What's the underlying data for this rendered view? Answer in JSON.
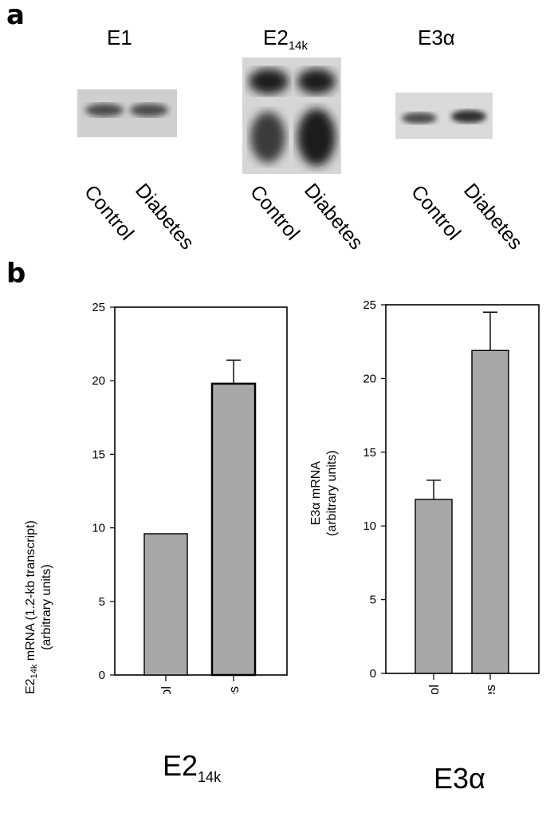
{
  "panel_a": {
    "letter": "a",
    "blots": [
      {
        "title_main": "E1",
        "title_sub": "",
        "lanes": [
          "Control",
          "Diabetes"
        ]
      },
      {
        "title_main": "E2",
        "title_sub": "14k",
        "lanes": [
          "Control",
          "Diabetes"
        ]
      },
      {
        "title_main": "E3α",
        "title_sub": "",
        "lanes": [
          "Control",
          "Diabetes"
        ]
      }
    ]
  },
  "panel_b": {
    "letter": "b"
  },
  "chart_data": [
    {
      "type": "bar",
      "name_main": "E2",
      "name_sub": "14k",
      "ylabel_line1_main": "E2",
      "ylabel_line1_sub": "14k",
      "ylabel_line1_rest": " mRNA (1.2-kb transcript)",
      "ylabel_line2": "(arbitrary units)",
      "categories": [
        "Control",
        "Diabetes"
      ],
      "values": [
        9.6,
        19.8
      ],
      "errors": [
        0,
        1.6
      ],
      "ylim": [
        0,
        25
      ],
      "yticks": [
        0,
        5,
        10,
        15,
        20,
        25
      ],
      "bar_color": "#a8a8a8"
    },
    {
      "type": "bar",
      "name_main": "E3α",
      "name_sub": "",
      "ylabel_line1_main": "E3α",
      "ylabel_line1_sub": "",
      "ylabel_line1_rest": " mRNA",
      "ylabel_line2": "(arbitrary units)",
      "categories": [
        "Control",
        "Diabetes"
      ],
      "values": [
        11.8,
        21.9
      ],
      "errors": [
        1.3,
        2.6
      ],
      "ylim": [
        0,
        25
      ],
      "yticks": [
        0,
        5,
        10,
        15,
        20,
        25
      ],
      "bar_color": "#a8a8a8"
    }
  ]
}
